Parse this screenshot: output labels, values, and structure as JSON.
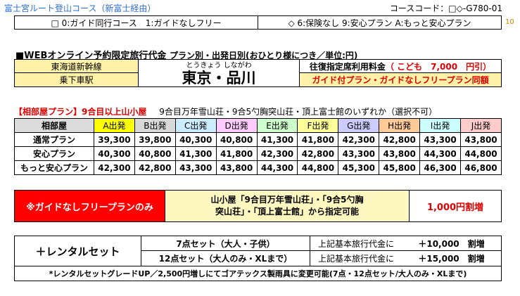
{
  "header": {
    "route": "富士宮ルート登山コース（新富士経由）",
    "course_code": "コースコード：□◇-G780-01",
    "guide_legend": "□ 0:ガイド同行コース　1:ガイドなしフリー",
    "insurance_legend": "◇ 6:保険なし 9:安心プラン A:もっと安心プラン",
    "page_number": "10"
  },
  "pricing_section": {
    "title": "■WEBオンライン予約限定旅行代金",
    "subtitle": "プラン別・出発日別(おひとり様につき／単位:円)",
    "line_label": "東海道新幹線",
    "station_label": "乗下車駅",
    "city_ruby": "とうきょう しながわ",
    "city": "東京・品川",
    "reserved_fee_label": "往復指定席利用料金",
    "child_discount": "（ こども　7,000　円引）",
    "same_price_note": "ガイド付プラン・ガイドなしフリープラン同額"
  },
  "room_section": {
    "tag": "【相部屋プラン】9合目以上山小屋",
    "huts": "9合目万年雪山荘・9合5勺胸突山荘・頂上富士館のいずれか（選択不可）"
  },
  "price_table": {
    "corner": "相部屋",
    "departures": [
      {
        "label": "A出発",
        "color": "#ffff00"
      },
      {
        "label": "B出発",
        "color": "#d9d9d9"
      },
      {
        "label": "C出発",
        "color": "#ccecff"
      },
      {
        "label": "D出発",
        "color": "#ffccff"
      },
      {
        "label": "E出発",
        "color": "#ccffcc"
      },
      {
        "label": "F出発",
        "color": "#ffff99"
      },
      {
        "label": "G出発",
        "color": "#ccccff"
      },
      {
        "label": "H出発",
        "color": "#ffcc99"
      },
      {
        "label": "I出発",
        "color": "#ccffff"
      },
      {
        "label": "J出発",
        "color": "#ffcccc"
      }
    ],
    "rows": [
      {
        "plan": "通常プラン",
        "prices": [
          "39,300",
          "39,800",
          "40,300",
          "40,800",
          "41,300",
          "41,800",
          "42,300",
          "42,800",
          "43,300",
          "43,800"
        ]
      },
      {
        "plan": "安心プラン",
        "prices": [
          "40,300",
          "40,800",
          "41,300",
          "41,800",
          "42,300",
          "42,800",
          "43,300",
          "43,800",
          "44,300",
          "44,800"
        ]
      },
      {
        "plan": "もっと安心プラン",
        "prices": [
          "42,300",
          "42,800",
          "43,300",
          "43,800",
          "44,300",
          "44,800",
          "45,300",
          "45,800",
          "46,300",
          "46,800"
        ]
      }
    ]
  },
  "guide_free": {
    "label": "※ガイドなしフリープランのみ",
    "line1": "山小屋「9合目万年雪山荘」・「9合5勺胸",
    "line2": "突山荘」・「頂上富士館」から指定可能",
    "surcharge": "1,000円割増"
  },
  "rental": {
    "label": "＋レンタルセット",
    "sets": [
      {
        "name": "7点セット（大人・子供）",
        "base": "上記基本旅行代金に",
        "price": "＋10,000　割増"
      },
      {
        "name": "12点セット（大人のみ・XLまで）",
        "base": "上記基本旅行代金に",
        "price": "＋15,000　割増"
      }
    ],
    "note": "*レンタルセットグレードUP／2,500円増しにてゴアテックス製雨具に変更可能(7点・12点セット/大人のみ・XLまで)"
  }
}
